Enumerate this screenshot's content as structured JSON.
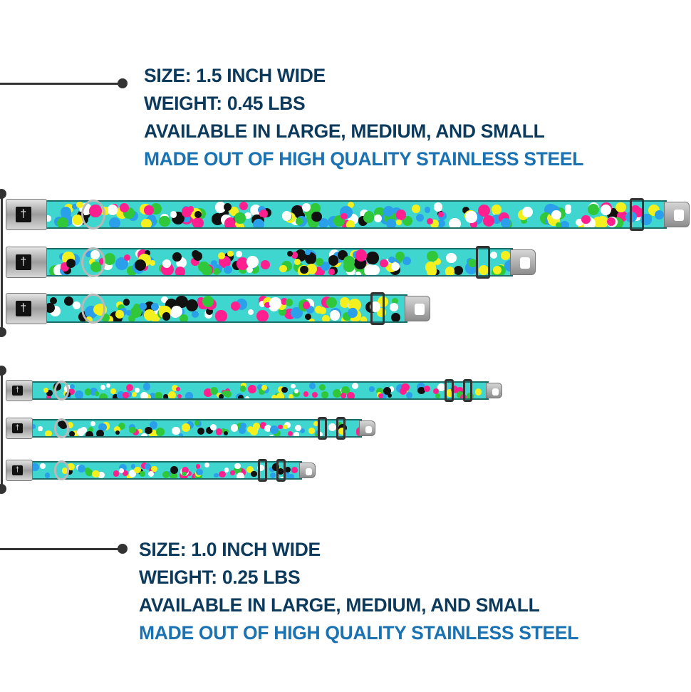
{
  "large_specs": {
    "size": "SIZE: 1.5 INCH WIDE",
    "weight": "WEIGHT: 0.45 LBS",
    "availability": "AVAILABLE IN LARGE, MEDIUM, AND SMALL",
    "material": "MADE OUT OF HIGH QUALITY STAINLESS STEEL"
  },
  "small_specs": {
    "size": "SIZE: 1.0 INCH WIDE",
    "weight": "WEIGHT: 0.25 LBS",
    "availability": "AVAILABLE IN LARGE, MEDIUM, AND SMALL",
    "material": "MADE OUT OF HIGH QUALITY STAINLESS STEEL"
  },
  "colors": {
    "text_primary": "#0c3a5c",
    "text_accent": "#1a72b2",
    "strap": "#3fd6cf",
    "polka_dots": [
      "#ff1f8e",
      "#ffffff",
      "#111111",
      "#2aa0ea",
      "#30c83a",
      "#f4f020"
    ]
  },
  "collars": [
    {
      "group": "1.5 inch",
      "size": "large"
    },
    {
      "group": "1.5 inch",
      "size": "medium"
    },
    {
      "group": "1.5 inch",
      "size": "small"
    },
    {
      "group": "1.0 inch",
      "size": "large"
    },
    {
      "group": "1.0 inch",
      "size": "medium"
    },
    {
      "group": "1.0 inch",
      "size": "small"
    }
  ],
  "icons": {
    "buckle_logo": "bone-icon"
  }
}
